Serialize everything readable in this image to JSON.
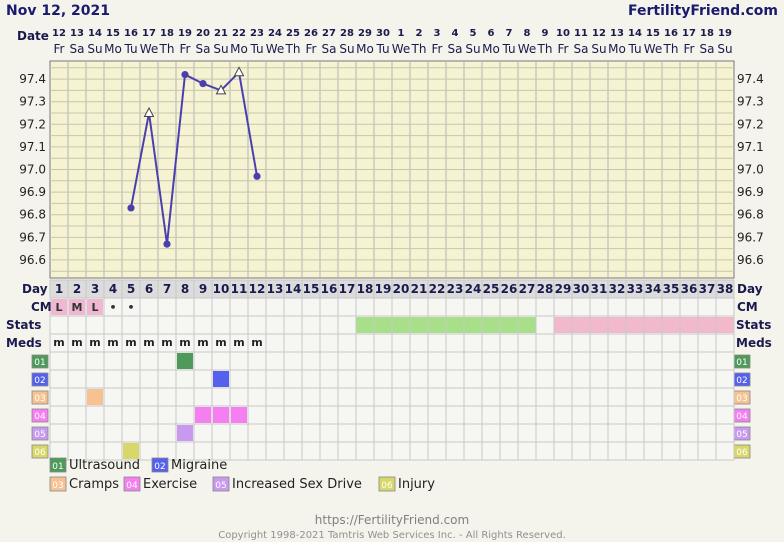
{
  "header": {
    "date": "Nov 12, 2021",
    "site": "FertilityFriend.com"
  },
  "row_labels": {
    "date": "Date",
    "day": "Day",
    "cm": "CM",
    "stats": "Stats",
    "meds": "Meds"
  },
  "footer": {
    "url": "https://FertilityFriend.com",
    "copyright": "Copyright 1998-2021 Tamtris Web Services Inc. - All Rights Reserved."
  },
  "colors": {
    "page_bg": "#f4f4ec",
    "chart_bg": "#f6f3d3",
    "grid": "#b0b0b0",
    "line": "#4b3fb0",
    "cm_pink": "#f0b8d0",
    "stats_green": "#a8e08a",
    "stats_pink": "#f2b8cc"
  },
  "chart_data": {
    "type": "line",
    "title": "",
    "dates": [
      "12",
      "13",
      "14",
      "15",
      "16",
      "17",
      "18",
      "19",
      "20",
      "21",
      "22",
      "23",
      "24",
      "25",
      "26",
      "27",
      "28",
      "29",
      "30",
      "1",
      "2",
      "3",
      "4",
      "5",
      "6",
      "7",
      "8",
      "9",
      "10",
      "11",
      "12",
      "13",
      "14",
      "15",
      "16",
      "17",
      "18",
      "19"
    ],
    "weekdays": [
      "Fr",
      "Sa",
      "Su",
      "Mo",
      "Tu",
      "We",
      "Th",
      "Fr",
      "Sa",
      "Su",
      "Mo",
      "Tu",
      "We",
      "Th",
      "Fr",
      "Sa",
      "Su",
      "Mo",
      "Tu",
      "We",
      "Th",
      "Fr",
      "Sa",
      "Su",
      "Mo",
      "Tu",
      "We",
      "Th",
      "Fr",
      "Sa",
      "Su",
      "Mo",
      "Tu",
      "We",
      "Th",
      "Fr",
      "Sa",
      "Su"
    ],
    "cycle_days": [
      1,
      2,
      3,
      4,
      5,
      6,
      7,
      8,
      9,
      10,
      11,
      12,
      13,
      14,
      15,
      16,
      17,
      18,
      19,
      20,
      21,
      22,
      23,
      24,
      25,
      26,
      27,
      28,
      29,
      30,
      31,
      32,
      33,
      34,
      35,
      36,
      37,
      38
    ],
    "y_ticks": [
      97.4,
      97.3,
      97.2,
      97.1,
      97.0,
      96.9,
      96.8,
      96.7,
      96.6
    ],
    "y_tick_labels": [
      "97.4",
      "97.3",
      "97.2",
      "97.1",
      "97.0",
      "96.9",
      "96.8",
      "96.7",
      "96.6"
    ],
    "ylim": [
      96.52,
      97.48
    ],
    "temperatures": [
      {
        "day": 5,
        "value": 96.83,
        "marker": "dot"
      },
      {
        "day": 6,
        "value": 97.25,
        "marker": "triangle"
      },
      {
        "day": 7,
        "value": 96.67,
        "marker": "dot"
      },
      {
        "day": 8,
        "value": 97.42,
        "marker": "dot"
      },
      {
        "day": 9,
        "value": 97.38,
        "marker": "dot"
      },
      {
        "day": 10,
        "value": 97.35,
        "marker": "triangle"
      },
      {
        "day": 11,
        "value": 97.43,
        "marker": "triangle"
      },
      {
        "day": 12,
        "value": 96.97,
        "marker": "dot"
      }
    ],
    "cm": [
      {
        "day": 1,
        "text": "L",
        "filled": true
      },
      {
        "day": 2,
        "text": "M",
        "filled": true
      },
      {
        "day": 3,
        "text": "L",
        "filled": true
      },
      {
        "day": 4,
        "text": "•",
        "filled": false
      },
      {
        "day": 5,
        "text": "•",
        "filled": false
      }
    ],
    "stats": [
      {
        "start_day": 18,
        "end_day": 27,
        "color": "#a8e08a"
      },
      {
        "start_day": 29,
        "end_day": 38,
        "color": "#f2b8cc"
      }
    ],
    "meds": {
      "days": [
        1,
        2,
        3,
        4,
        5,
        6,
        7,
        8,
        9,
        10,
        11,
        12
      ],
      "text": "m"
    },
    "symptom_rows": [
      {
        "code": "01",
        "color": "#4f9a5a",
        "days": [
          8
        ]
      },
      {
        "code": "02",
        "color": "#5560ec",
        "days": [
          10
        ]
      },
      {
        "code": "03",
        "color": "#f6c292",
        "days": [
          3
        ]
      },
      {
        "code": "04",
        "color": "#f57ef0",
        "days": [
          9,
          10,
          11
        ]
      },
      {
        "code": "05",
        "color": "#c79af0",
        "days": [
          8
        ]
      },
      {
        "code": "06",
        "color": "#d8d86a",
        "days": [
          5
        ]
      }
    ],
    "legend": [
      {
        "code": "01",
        "label": "Ultrasound",
        "color": "#4f9a5a"
      },
      {
        "code": "02",
        "label": "Migraine",
        "color": "#5560ec"
      },
      {
        "code": "03",
        "label": "Cramps",
        "color": "#f6c292"
      },
      {
        "code": "04",
        "label": "Exercise",
        "color": "#f57ef0"
      },
      {
        "code": "05",
        "label": "Increased Sex Drive",
        "color": "#c79af0"
      },
      {
        "code": "06",
        "label": "Injury",
        "color": "#d8d86a"
      }
    ]
  }
}
